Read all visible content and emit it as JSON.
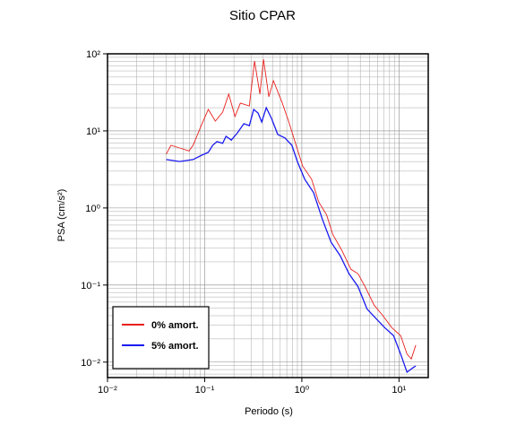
{
  "chart_data": {
    "type": "line",
    "title": "Sitio CPAR",
    "x_label": "Periodo (s)",
    "y_label": "PSA (cm/s²)",
    "log_x": true,
    "log_y": true,
    "grid": true,
    "legend": "lower left",
    "xlim": [
      0.01,
      20
    ],
    "ylim": [
      0.0063,
      100
    ],
    "xticks": [
      {
        "value": 0.01,
        "label": "10⁻²"
      },
      {
        "value": 0.1,
        "label": "10⁻¹"
      },
      {
        "value": 1,
        "label": "10⁰"
      },
      {
        "value": 10,
        "label": "10¹"
      }
    ],
    "yticks": [
      {
        "value": 0.01,
        "label": "10⁻²"
      },
      {
        "value": 0.1,
        "label": "10⁻¹"
      },
      {
        "value": 1,
        "label": "10⁰"
      },
      {
        "value": 10,
        "label": "10¹"
      },
      {
        "value": 100,
        "label": "10²"
      }
    ],
    "series": [
      {
        "name": "0% amort.",
        "color": "#e8201c",
        "x": [
          0.0403,
          0.045,
          0.0553,
          0.069,
          0.076,
          0.094,
          0.109,
          0.129,
          0.153,
          0.177,
          0.205,
          0.233,
          0.288,
          0.326,
          0.37,
          0.403,
          0.458,
          0.51,
          0.63,
          0.73,
          0.86,
          1.02,
          1.26,
          1.49,
          1.8,
          2.09,
          2.59,
          3.2,
          3.79,
          4.48,
          5.53,
          6.83,
          8.43,
          10.4,
          12.1,
          13.4,
          14.9
        ],
        "values": [
          5.0,
          6.5,
          6.0,
          5.5,
          6.5,
          12.4,
          19,
          13.4,
          17.5,
          30,
          15.4,
          23,
          21,
          80.7,
          30,
          85,
          27.7,
          44.8,
          23,
          13.4,
          6.9,
          3.5,
          2.36,
          1.2,
          0.81,
          0.45,
          0.28,
          0.16,
          0.14,
          0.095,
          0.055,
          0.04,
          0.028,
          0.022,
          0.0127,
          0.011,
          0.0166
        ]
      },
      {
        "name": "5% amort.",
        "color": "#1a1af0",
        "x": [
          0.0403,
          0.0553,
          0.076,
          0.094,
          0.109,
          0.121,
          0.134,
          0.153,
          0.166,
          0.188,
          0.218,
          0.253,
          0.288,
          0.32,
          0.355,
          0.386,
          0.43,
          0.488,
          0.565,
          0.67,
          0.79,
          0.9,
          1.07,
          1.32,
          1.63,
          2.0,
          2.48,
          3.06,
          3.79,
          4.68,
          5.77,
          7.13,
          8.8,
          10.4,
          12.1,
          14.0,
          14.9
        ],
        "values": [
          4.25,
          4.0,
          4.25,
          4.85,
          5.26,
          6.5,
          7.25,
          6.9,
          8.5,
          7.6,
          9.5,
          12.4,
          11.7,
          19,
          17,
          13,
          20,
          14.5,
          9,
          8.1,
          6.5,
          4.0,
          2.36,
          1.58,
          0.71,
          0.36,
          0.24,
          0.14,
          0.095,
          0.049,
          0.037,
          0.028,
          0.022,
          0.0127,
          0.0074,
          0.0085,
          0.0089
        ]
      }
    ]
  }
}
